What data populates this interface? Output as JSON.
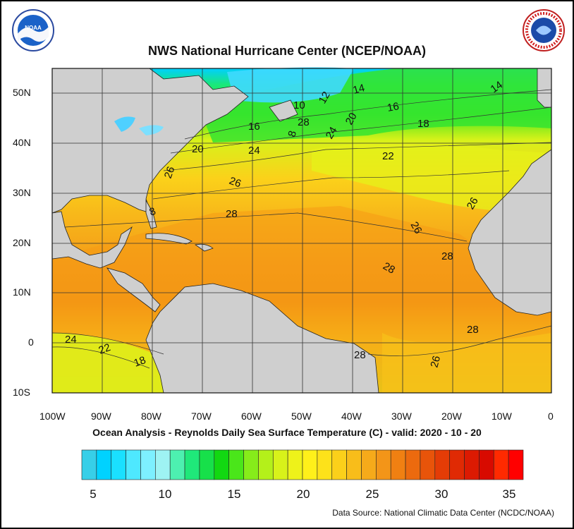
{
  "header": {
    "title": "NWS National Hurricane Center (NCEP/NOAA)",
    "subtitle": "Ocean Analysis - Reynolds Daily Sea Surface Temperature (C) - valid: 2020 - 10 - 20"
  },
  "logos": {
    "left": "NOAA",
    "right": "NATIONAL WEATHER SERVICE"
  },
  "axes": {
    "lat_labels": [
      "50N",
      "40N",
      "30N",
      "20N",
      "10N",
      "0",
      "10S"
    ],
    "lon_labels": [
      "100W",
      "90W",
      "80W",
      "70W",
      "60W",
      "50W",
      "40W",
      "30W",
      "20W",
      "10W",
      "0"
    ]
  },
  "contour_labels": [
    "14",
    "12",
    "10",
    "16",
    "18",
    "16",
    "14",
    "20",
    "22",
    "24",
    "20",
    "8",
    "24",
    "26",
    "26",
    "28",
    "26",
    "26",
    "28",
    "28",
    "28",
    "28",
    "8",
    "24",
    "22",
    "18",
    "28",
    "26"
  ],
  "colorbar": {
    "colors": [
      "#37cfe8",
      "#00d2ff",
      "#1ae0ff",
      "#4ee8ff",
      "#7df0ff",
      "#9ef3f3",
      "#4df0b0",
      "#1fe87a",
      "#17e04a",
      "#12d812",
      "#4ae61a",
      "#86ec1a",
      "#b4f01a",
      "#d8f21a",
      "#eef21a",
      "#fff01a",
      "#fde21a",
      "#fbd01a",
      "#f8bd1a",
      "#f6aa1a",
      "#f39518",
      "#f08012",
      "#ec6a0e",
      "#e8540a",
      "#e43c06",
      "#e02a04",
      "#dc1a02",
      "#d80a00",
      "#ff2a00",
      "#ff0000"
    ],
    "labels": [
      "5",
      "10",
      "15",
      "20",
      "25",
      "30",
      "35"
    ]
  },
  "credit": "Data Source: National Climatic Data Center (NCDC/NOAA)"
}
